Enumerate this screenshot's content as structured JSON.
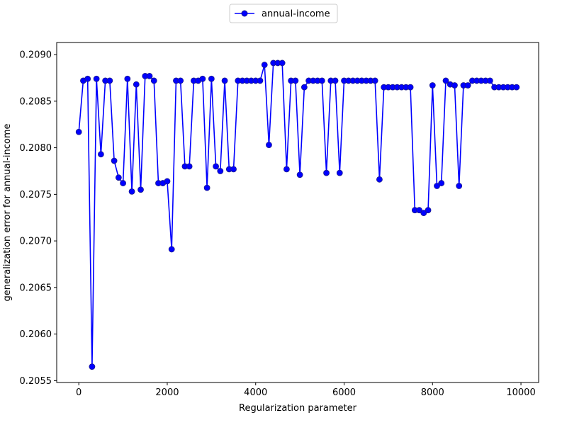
{
  "chart_data": {
    "type": "line",
    "xlabel": "Regularization parameter",
    "ylabel": "generalization error for annual-income",
    "xlim": [
      -500,
      10400
    ],
    "ylim": [
      0.20548,
      0.20913
    ],
    "xticks": [
      0,
      2000,
      4000,
      6000,
      8000,
      10000
    ],
    "xtick_labels": [
      "0",
      "2000",
      "4000",
      "6000",
      "8000",
      "10000"
    ],
    "yticks": [
      0.2055,
      0.206,
      0.2065,
      0.207,
      0.2075,
      0.208,
      0.2085,
      0.209
    ],
    "ytick_labels": [
      "0.2055",
      "0.2060",
      "0.2065",
      "0.2070",
      "0.2075",
      "0.2080",
      "0.2085",
      "0.2090"
    ],
    "grid": false,
    "legend_position": "top-center",
    "series": [
      {
        "name": "annual-income",
        "color": "#0000ff",
        "marker": "circle",
        "x": [
          0,
          100,
          200,
          300,
          400,
          500,
          600,
          700,
          800,
          900,
          1000,
          1100,
          1200,
          1300,
          1400,
          1500,
          1600,
          1700,
          1800,
          1900,
          2000,
          2100,
          2200,
          2300,
          2400,
          2500,
          2600,
          2700,
          2800,
          2900,
          3000,
          3100,
          3200,
          3300,
          3400,
          3500,
          3600,
          3700,
          3800,
          3900,
          4000,
          4100,
          4200,
          4300,
          4400,
          4500,
          4600,
          4700,
          4800,
          4900,
          5000,
          5100,
          5200,
          5300,
          5400,
          5500,
          5600,
          5700,
          5800,
          5900,
          6000,
          6100,
          6200,
          6300,
          6400,
          6500,
          6600,
          6700,
          6800,
          6900,
          7000,
          7100,
          7200,
          7300,
          7400,
          7500,
          7600,
          7700,
          7800,
          7900,
          8000,
          8100,
          8200,
          8300,
          8400,
          8500,
          8600,
          8700,
          8800,
          8900,
          9000,
          9100,
          9200,
          9300,
          9400,
          9500,
          9600,
          9700,
          9800,
          9900
        ],
        "y": [
          0.20817,
          0.20872,
          0.20874,
          0.20565,
          0.20874,
          0.20793,
          0.20872,
          0.20872,
          0.20786,
          0.20768,
          0.20762,
          0.20874,
          0.20753,
          0.20868,
          0.20755,
          0.20877,
          0.20877,
          0.20872,
          0.20762,
          0.20762,
          0.20764,
          0.20691,
          0.20872,
          0.20872,
          0.2078,
          0.2078,
          0.20872,
          0.20872,
          0.20874,
          0.20757,
          0.20874,
          0.2078,
          0.20775,
          0.20872,
          0.20777,
          0.20777,
          0.20872,
          0.20872,
          0.20872,
          0.20872,
          0.20872,
          0.20872,
          0.20889,
          0.20803,
          0.20891,
          0.20891,
          0.20891,
          0.20777,
          0.20872,
          0.20872,
          0.20771,
          0.20865,
          0.20872,
          0.20872,
          0.20872,
          0.20872,
          0.20773,
          0.20872,
          0.20872,
          0.20773,
          0.20872,
          0.20872,
          0.20872,
          0.20872,
          0.20872,
          0.20872,
          0.20872,
          0.20872,
          0.20766,
          0.20865,
          0.20865,
          0.20865,
          0.20865,
          0.20865,
          0.20865,
          0.20865,
          0.20733,
          0.20733,
          0.2073,
          0.20733,
          0.20867,
          0.20759,
          0.20762,
          0.20872,
          0.20868,
          0.20867,
          0.20759,
          0.20867,
          0.20867,
          0.20872,
          0.20872,
          0.20872,
          0.20872,
          0.20872,
          0.20865,
          0.20865,
          0.20865,
          0.20865,
          0.20865,
          0.20865
        ]
      }
    ]
  }
}
